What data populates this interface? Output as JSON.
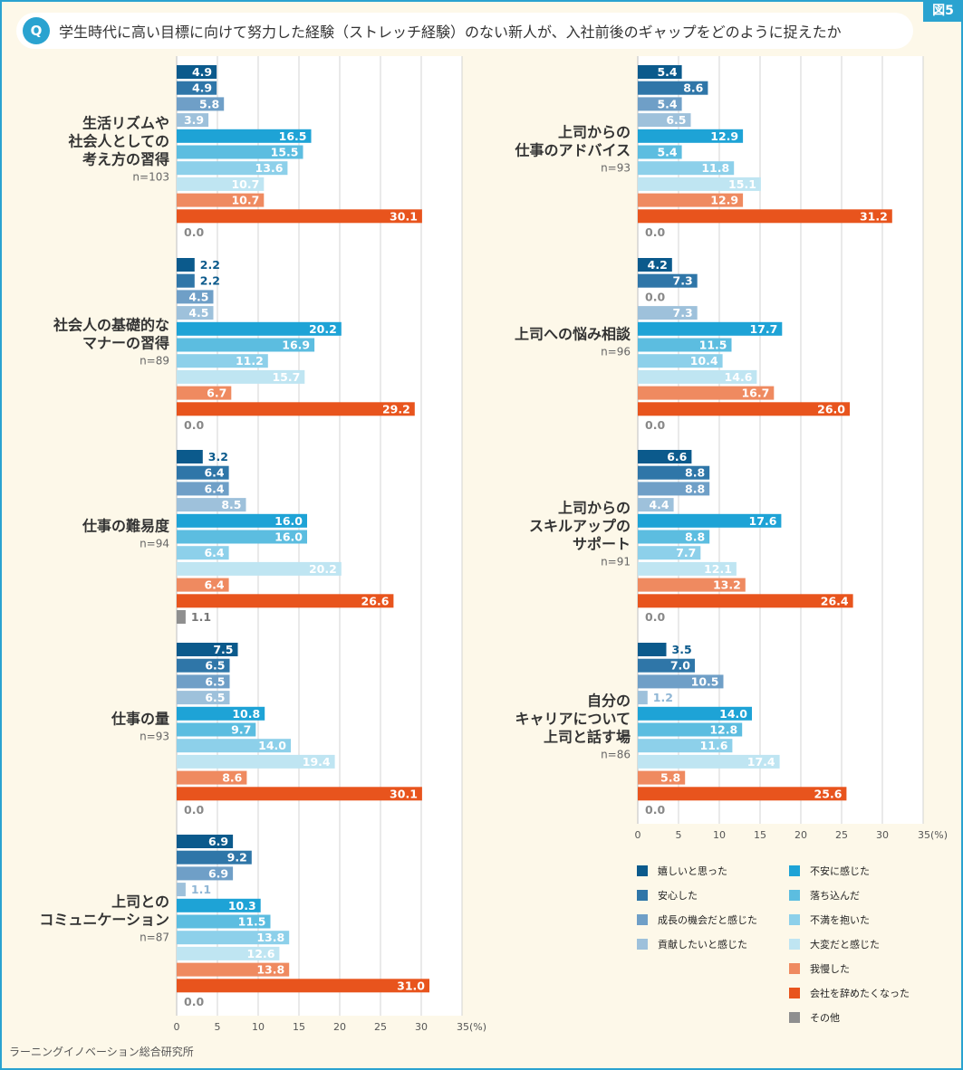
{
  "figure_label": "図5",
  "question_badge": "Q",
  "question": "学生時代に高い目標に向けて努力した経験（ストレッチ経験）のない新人が、入社前後のギャップをどのように捉えたか",
  "source": "ラーニングイノベーション総合研究所",
  "colors": [
    "#0b5a8c",
    "#2f76a8",
    "#6f9fc7",
    "#9ec1db",
    "#1ea3d6",
    "#5cbde0",
    "#8dd0ea",
    "#bfe5f2",
    "#ef8a60",
    "#e8541d",
    "#8f8f8f"
  ],
  "legend": {
    "col1": [
      "嬉しいと思った",
      "安心した",
      "成長の機会だと感じた",
      "貢献したいと感じた"
    ],
    "col2": [
      "不安に感じた",
      "落ち込んだ",
      "不満を抱いた",
      "大変だと感じた",
      "我慢した",
      "会社を辞めたくなった",
      "その他"
    ]
  },
  "chart_data": {
    "type": "bar",
    "orientation": "horizontal",
    "xlim": [
      0,
      35
    ],
    "xticks": [
      "0",
      "5",
      "10",
      "15",
      "20",
      "25",
      "30",
      "35(%)"
    ],
    "series": [
      "嬉しいと思った",
      "安心した",
      "成長の機会だと感じた",
      "貢献したいと感じた",
      "不安に感じた",
      "落ち込んだ",
      "不満を抱いた",
      "大変だと感じた",
      "我慢した",
      "会社を辞めたくなった",
      "その他"
    ],
    "groups": [
      {
        "column": "left",
        "label": [
          "生活リズムや",
          "社会人としての",
          "考え方の習得"
        ],
        "n": "n=103",
        "values": [
          4.9,
          4.9,
          5.8,
          3.9,
          16.5,
          15.5,
          13.6,
          10.7,
          10.7,
          30.1,
          0.0
        ]
      },
      {
        "column": "left",
        "label": [
          "社会人の基礎的な",
          "マナーの習得"
        ],
        "n": "n=89",
        "values": [
          2.2,
          2.2,
          4.5,
          4.5,
          20.2,
          16.9,
          11.2,
          15.7,
          6.7,
          29.2,
          0.0
        ]
      },
      {
        "column": "left",
        "label": [
          "仕事の難易度"
        ],
        "n": "n=94",
        "values": [
          3.2,
          6.4,
          6.4,
          8.5,
          16.0,
          16.0,
          6.4,
          20.2,
          6.4,
          26.6,
          1.1
        ]
      },
      {
        "column": "left",
        "label": [
          "仕事の量"
        ],
        "n": "n=93",
        "values": [
          7.5,
          6.5,
          6.5,
          6.5,
          10.8,
          9.7,
          14.0,
          19.4,
          8.6,
          30.1,
          0.0
        ]
      },
      {
        "column": "left",
        "label": [
          "上司との",
          "コミュニケーション"
        ],
        "n": "n=87",
        "values": [
          6.9,
          9.2,
          6.9,
          1.1,
          10.3,
          11.5,
          13.8,
          12.6,
          13.8,
          31.0,
          0.0
        ]
      },
      {
        "column": "right",
        "label": [
          "上司からの",
          "仕事のアドバイス"
        ],
        "n": "n=93",
        "values": [
          5.4,
          8.6,
          5.4,
          6.5,
          12.9,
          5.4,
          11.8,
          15.1,
          12.9,
          31.2,
          0.0
        ]
      },
      {
        "column": "right",
        "label": [
          "上司への悩み相談"
        ],
        "n": "n=96",
        "values": [
          4.2,
          7.3,
          0.0,
          7.3,
          17.7,
          11.5,
          10.4,
          14.6,
          16.7,
          26.0,
          0.0
        ]
      },
      {
        "column": "right",
        "label": [
          "上司からの",
          "スキルアップの",
          "サポート"
        ],
        "n": "n=91",
        "values": [
          6.6,
          8.8,
          8.8,
          4.4,
          17.6,
          8.8,
          7.7,
          12.1,
          13.2,
          26.4,
          0.0
        ]
      },
      {
        "column": "right",
        "label": [
          "自分の",
          "キャリアについて",
          "上司と話す場"
        ],
        "n": "n=86",
        "values": [
          3.5,
          7.0,
          10.5,
          1.2,
          14.0,
          12.8,
          11.6,
          17.4,
          5.8,
          25.6,
          0.0
        ]
      }
    ]
  }
}
